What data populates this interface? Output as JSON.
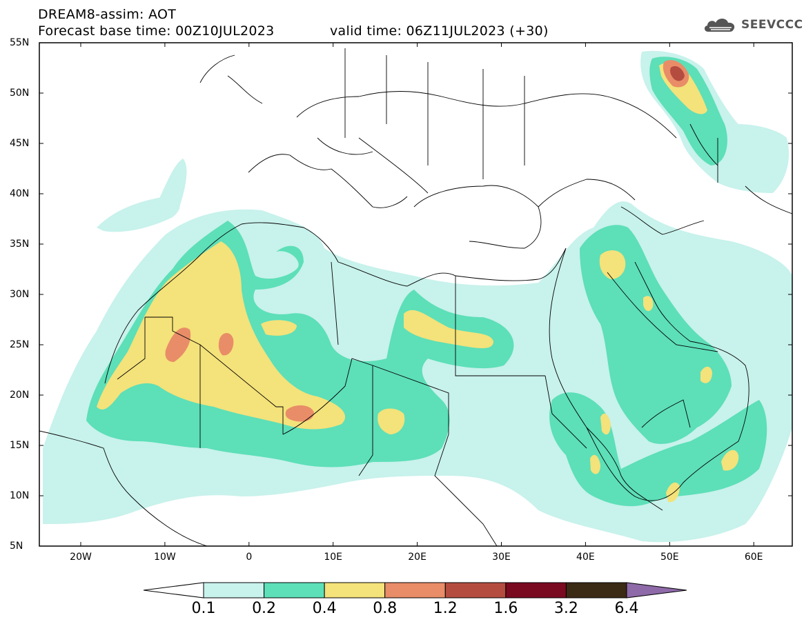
{
  "title": {
    "line1": "DREAM8-assim: AOT",
    "line2": "Forecast base time: 00Z10JUL2023",
    "valid": "valid time: 06Z11JUL2023 (+30)"
  },
  "logo": {
    "text": "SEEVCCC",
    "icon": "cloud-icon"
  },
  "map": {
    "lat_labels": [
      "55N",
      "50N",
      "45N",
      "40N",
      "35N",
      "30N",
      "25N",
      "20N",
      "15N",
      "10N",
      "5N"
    ],
    "lon_labels": [
      "20W",
      "10W",
      "0",
      "10E",
      "20E",
      "30E",
      "40E",
      "50E",
      "60E"
    ],
    "colors": {
      "c01": "#c8f2ec",
      "c02": "#5ddfb8",
      "c04": "#f4e27a",
      "c08": "#e88d68",
      "c12": "#b54c40",
      "c16": "#7a0a20",
      "c32": "#3b2a14",
      "c64": "#8e6aa8"
    }
  },
  "colorbar": {
    "labels": [
      "0.1",
      "0.2",
      "0.4",
      "0.8",
      "1.2",
      "1.6",
      "3.2",
      "6.4"
    ],
    "colors": [
      "#ffffff",
      "#c8f2ec",
      "#5ddfb8",
      "#f4e27a",
      "#e88d68",
      "#b54c40",
      "#7a0a20",
      "#3b2a14",
      "#8e6aa8"
    ]
  }
}
